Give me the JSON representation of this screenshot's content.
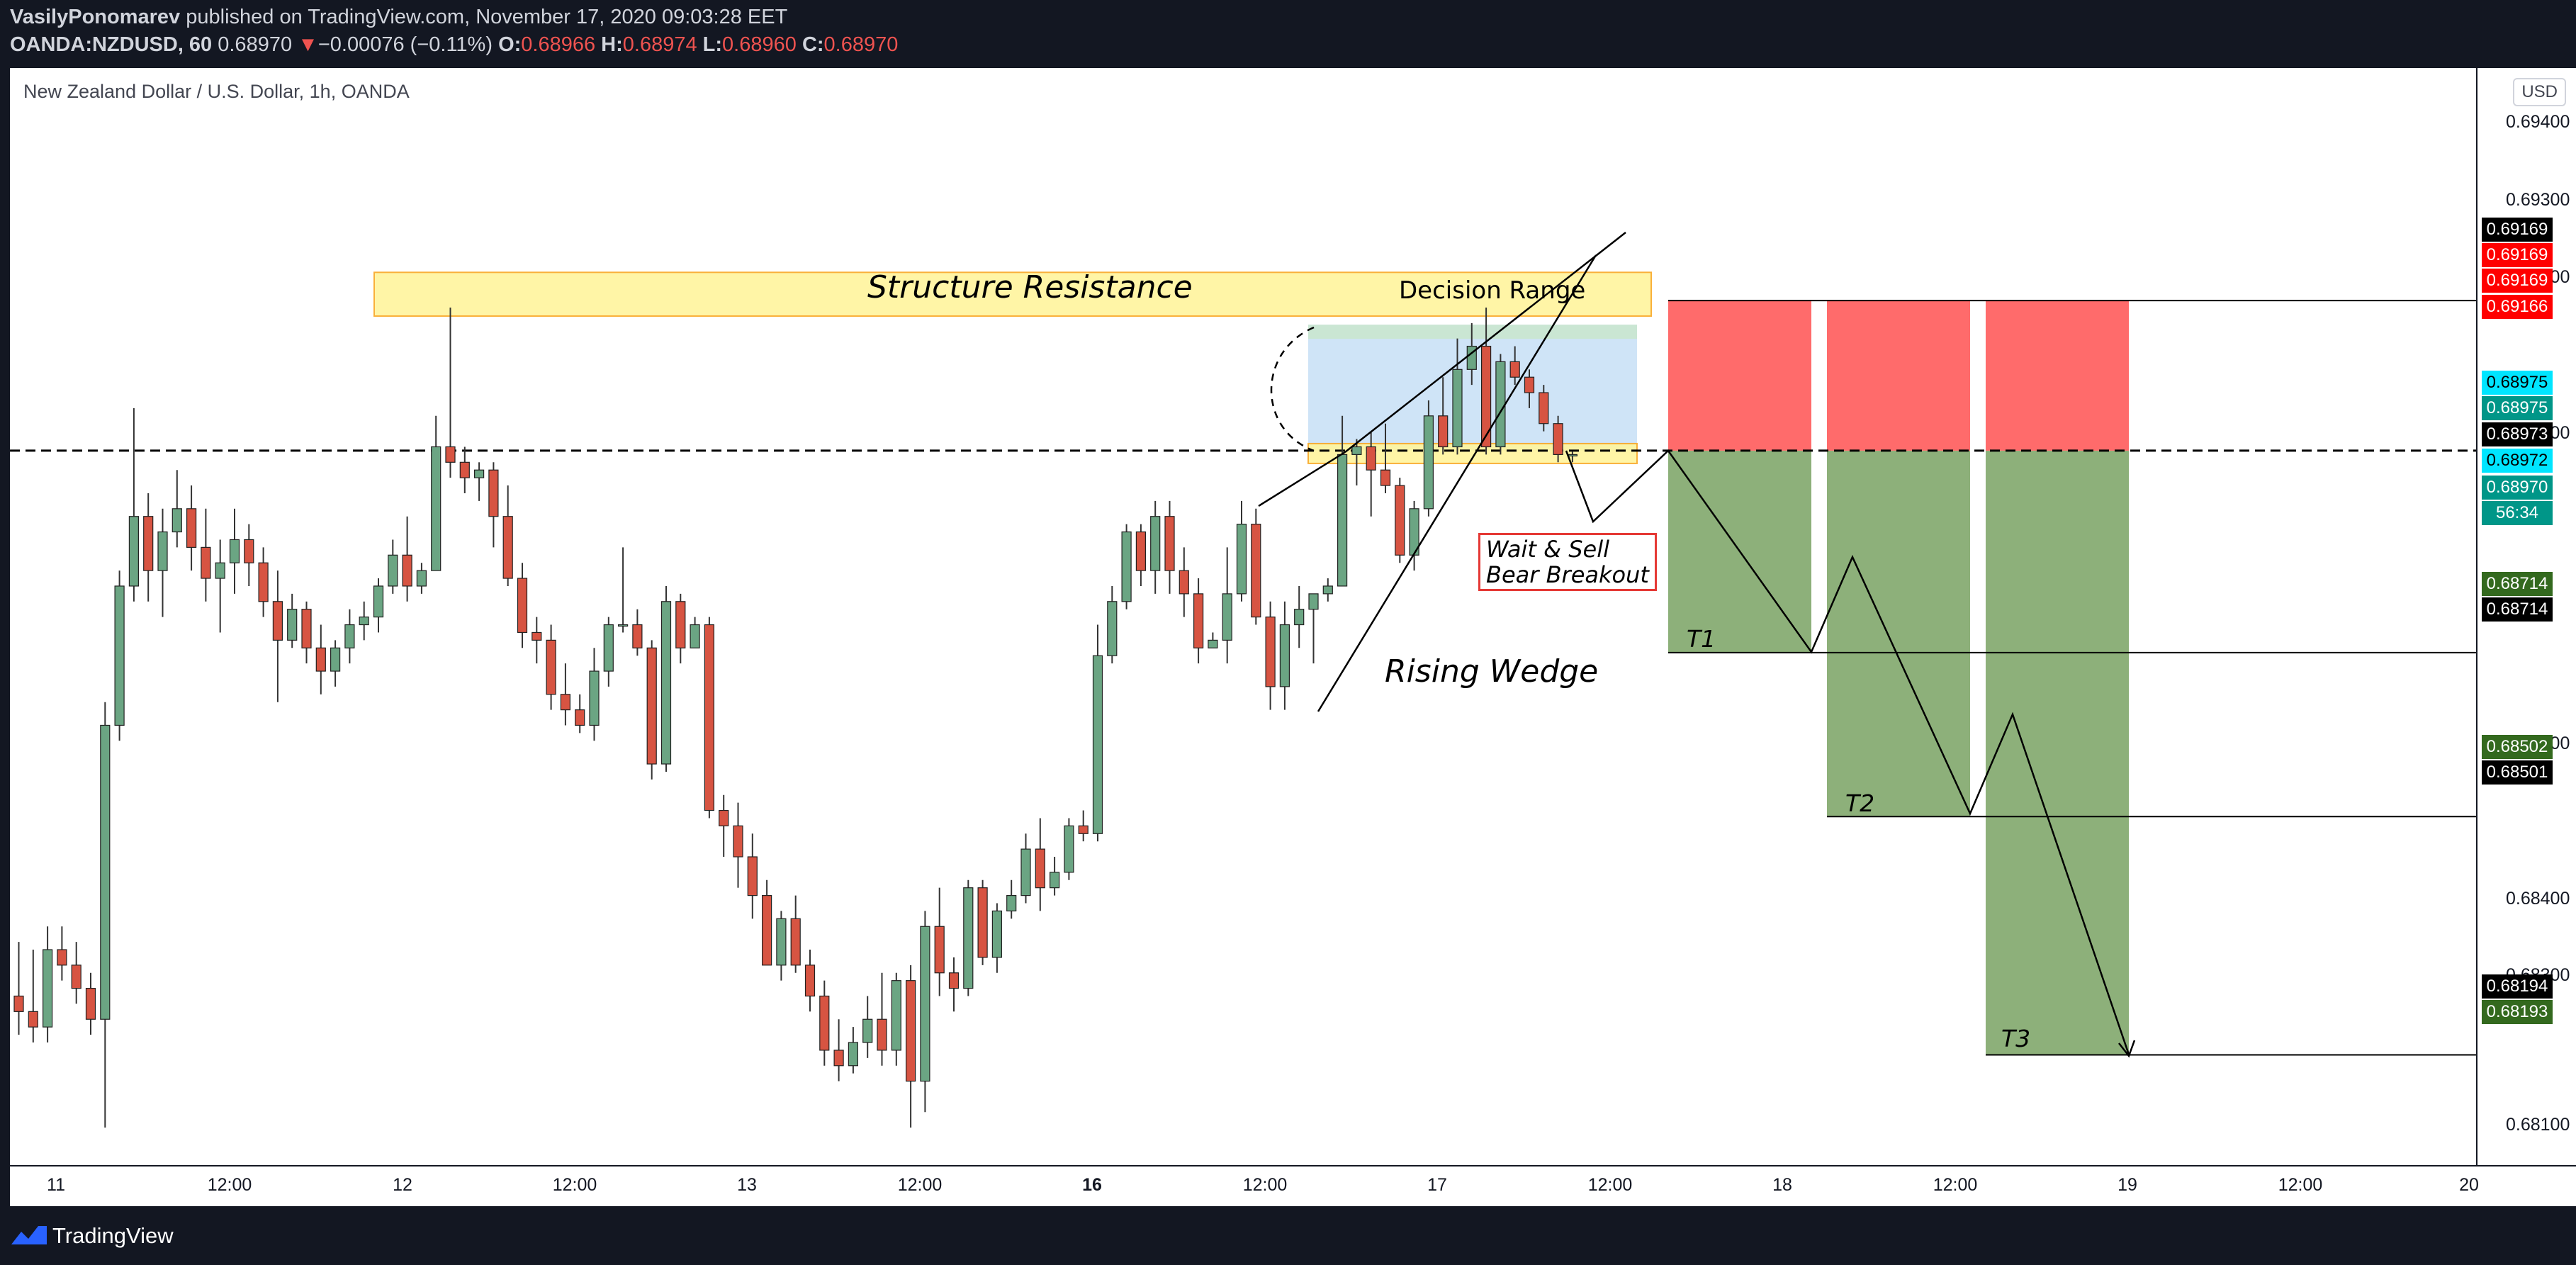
{
  "header": {
    "author": "VasilyPonomarev",
    "published_text": "published on TradingView.com, November 17, 2020 09:03:28 EET",
    "symbol": "OANDA:NZDUSD, 60",
    "last": "0.68970",
    "arrow": "▼",
    "change": "−0.00076 (−0.11%)",
    "o_label": "O:",
    "o_value": "0.68966",
    "h_label": "H:",
    "h_value": "0.68974",
    "l_label": "L:",
    "l_value": "0.68960",
    "c_label": "C:",
    "c_value": "0.68970"
  },
  "chart": {
    "title": "New Zealand Dollar / U.S. Dollar, 1h, OANDA",
    "currency_button": "USD",
    "annotations": {
      "structure_resistance": "Structure Resistance",
      "decision_range": "Decision Range",
      "wait_sell_line1": "Wait & Sell",
      "wait_sell_line2": "Bear Breakout",
      "rising_wedge": "Rising Wedge",
      "t1": "T1",
      "t2": "T2",
      "t3": "T3"
    },
    "price_axis_ticks": [
      "0.69400",
      "0.69300",
      "0.69200",
      "0.69000",
      "0.68600",
      "0.68400",
      "0.68300",
      "0.68100"
    ],
    "price_labels": [
      {
        "text": "0.69169",
        "bg": "#000000",
        "fg": "#ffffff"
      },
      {
        "text": "0.69169",
        "bg": "#ff0000",
        "fg": "#ffffff"
      },
      {
        "text": "0.69169",
        "bg": "#ff0000",
        "fg": "#ffffff"
      },
      {
        "text": "0.69166",
        "bg": "#ff0000",
        "fg": "#ffffff"
      },
      {
        "text": "0.68975",
        "bg": "#00e5ff",
        "fg": "#000000"
      },
      {
        "text": "0.68975",
        "bg": "#009688",
        "fg": "#ffffff"
      },
      {
        "text": "0.68973",
        "bg": "#000000",
        "fg": "#ffffff"
      },
      {
        "text": "0.68972",
        "bg": "#00e5ff",
        "fg": "#000000"
      },
      {
        "text": "0.68970",
        "bg": "#009688",
        "fg": "#ffffff"
      },
      {
        "text": "56:34",
        "bg": "#009688",
        "fg": "#ffffff"
      },
      {
        "text": "0.68714",
        "bg": "#33691e",
        "fg": "#ffffff"
      },
      {
        "text": "0.68714",
        "bg": "#000000",
        "fg": "#ffffff"
      },
      {
        "text": "0.68502",
        "bg": "#33691e",
        "fg": "#ffffff"
      },
      {
        "text": "0.68501",
        "bg": "#000000",
        "fg": "#ffffff"
      },
      {
        "text": "0.68194",
        "bg": "#000000",
        "fg": "#ffffff"
      },
      {
        "text": "0.68193",
        "bg": "#33691e",
        "fg": "#ffffff"
      }
    ],
    "time_axis_ticks": [
      {
        "label": "11",
        "bold": false
      },
      {
        "label": "12:00",
        "bold": false
      },
      {
        "label": "12",
        "bold": false
      },
      {
        "label": "12:00",
        "bold": false
      },
      {
        "label": "13",
        "bold": false
      },
      {
        "label": "12:00",
        "bold": false
      },
      {
        "label": "16",
        "bold": true
      },
      {
        "label": "12:00",
        "bold": false
      },
      {
        "label": "17",
        "bold": false
      },
      {
        "label": "12:00",
        "bold": false
      },
      {
        "label": "18",
        "bold": false
      },
      {
        "label": "12:00",
        "bold": false
      },
      {
        "label": "19",
        "bold": false
      },
      {
        "label": "12:00",
        "bold": false
      },
      {
        "label": "20",
        "bold": false
      }
    ],
    "colors": {
      "up": "#6ba583",
      "down": "#d75442",
      "stop_zone": "#ff6b6b",
      "target_zone": "#8db07a",
      "resistance_zone": "#fff59d",
      "decision_zone": "#cfe4f7"
    }
  },
  "chart_data": {
    "type": "candlestick",
    "title": "New Zealand Dollar / U.S. Dollar, 1h, OANDA",
    "y_unit": "USD",
    "ylim": [
      0.6805,
      0.6945
    ],
    "candles": [
      [
        0.6827,
        0.6834,
        0.6822,
        0.6825
      ],
      [
        0.6825,
        0.6833,
        0.6821,
        0.6823
      ],
      [
        0.6823,
        0.6836,
        0.6821,
        0.6833
      ],
      [
        0.6833,
        0.6836,
        0.6829,
        0.6831
      ],
      [
        0.6831,
        0.6834,
        0.6826,
        0.6828
      ],
      [
        0.6828,
        0.683,
        0.6822,
        0.6824
      ],
      [
        0.6824,
        0.6865,
        0.681,
        0.6862
      ],
      [
        0.6862,
        0.6882,
        0.686,
        0.688
      ],
      [
        0.688,
        0.6903,
        0.6878,
        0.6889
      ],
      [
        0.6889,
        0.6892,
        0.6878,
        0.6882
      ],
      [
        0.6882,
        0.689,
        0.6876,
        0.6887
      ],
      [
        0.6887,
        0.6895,
        0.6885,
        0.689
      ],
      [
        0.689,
        0.6893,
        0.6882,
        0.6885
      ],
      [
        0.6885,
        0.689,
        0.6878,
        0.6881
      ],
      [
        0.6881,
        0.6886,
        0.6874,
        0.6883
      ],
      [
        0.6883,
        0.689,
        0.6879,
        0.6886
      ],
      [
        0.6886,
        0.6888,
        0.688,
        0.6883
      ],
      [
        0.6883,
        0.6885,
        0.6876,
        0.6878
      ],
      [
        0.6878,
        0.6882,
        0.6865,
        0.6873
      ],
      [
        0.6873,
        0.6879,
        0.6872,
        0.6877
      ],
      [
        0.6877,
        0.6878,
        0.687,
        0.6872
      ],
      [
        0.6872,
        0.6875,
        0.6866,
        0.6869
      ],
      [
        0.6869,
        0.6873,
        0.6867,
        0.6872
      ],
      [
        0.6872,
        0.6877,
        0.687,
        0.6875
      ],
      [
        0.6875,
        0.6878,
        0.6873,
        0.6876
      ],
      [
        0.6876,
        0.6881,
        0.6874,
        0.688
      ],
      [
        0.688,
        0.6886,
        0.6879,
        0.6884
      ],
      [
        0.6884,
        0.6889,
        0.6878,
        0.688
      ],
      [
        0.688,
        0.6883,
        0.6879,
        0.6882
      ],
      [
        0.6882,
        0.6902,
        0.6882,
        0.6898
      ],
      [
        0.6898,
        0.6916,
        0.6894,
        0.6896
      ],
      [
        0.6896,
        0.6898,
        0.6892,
        0.6894
      ],
      [
        0.6894,
        0.6896,
        0.6891,
        0.6895
      ],
      [
        0.6895,
        0.6896,
        0.6885,
        0.6889
      ],
      [
        0.6889,
        0.6893,
        0.688,
        0.6881
      ],
      [
        0.6881,
        0.6883,
        0.6872,
        0.6874
      ],
      [
        0.6874,
        0.6876,
        0.687,
        0.6873
      ],
      [
        0.6873,
        0.6875,
        0.6864,
        0.6866
      ],
      [
        0.6866,
        0.687,
        0.6862,
        0.6864
      ],
      [
        0.6864,
        0.6866,
        0.6861,
        0.6862
      ],
      [
        0.6862,
        0.6872,
        0.686,
        0.6869
      ],
      [
        0.6869,
        0.6876,
        0.6867,
        0.6875
      ],
      [
        0.6875,
        0.6885,
        0.6874,
        0.6875
      ],
      [
        0.6875,
        0.6877,
        0.6871,
        0.6872
      ],
      [
        0.6872,
        0.6873,
        0.6855,
        0.6857
      ],
      [
        0.6857,
        0.688,
        0.6856,
        0.6878
      ],
      [
        0.6878,
        0.6879,
        0.687,
        0.6872
      ],
      [
        0.6872,
        0.6876,
        0.6872,
        0.6875
      ],
      [
        0.6875,
        0.6876,
        0.685,
        0.6851
      ],
      [
        0.6851,
        0.6853,
        0.6845,
        0.6849
      ],
      [
        0.6849,
        0.6852,
        0.6841,
        0.6845
      ],
      [
        0.6845,
        0.6848,
        0.6837,
        0.684
      ],
      [
        0.684,
        0.6842,
        0.6832,
        0.6831
      ],
      [
        0.6831,
        0.6838,
        0.6829,
        0.6837
      ],
      [
        0.6837,
        0.684,
        0.683,
        0.6831
      ],
      [
        0.6831,
        0.6833,
        0.6825,
        0.6827
      ],
      [
        0.6827,
        0.6829,
        0.6818,
        0.682
      ],
      [
        0.682,
        0.6824,
        0.6816,
        0.6818
      ],
      [
        0.6818,
        0.6823,
        0.6817,
        0.6821
      ],
      [
        0.6821,
        0.6827,
        0.6819,
        0.6824
      ],
      [
        0.6824,
        0.683,
        0.6818,
        0.682
      ],
      [
        0.682,
        0.683,
        0.6818,
        0.6829
      ],
      [
        0.6829,
        0.6831,
        0.681,
        0.6816
      ],
      [
        0.6816,
        0.6838,
        0.6812,
        0.6836
      ],
      [
        0.6836,
        0.6841,
        0.6827,
        0.683
      ],
      [
        0.683,
        0.6832,
        0.6825,
        0.6828
      ],
      [
        0.6828,
        0.6842,
        0.6827,
        0.6841
      ],
      [
        0.6841,
        0.6842,
        0.6831,
        0.6832
      ],
      [
        0.6832,
        0.6839,
        0.683,
        0.6838
      ],
      [
        0.6838,
        0.6842,
        0.6837,
        0.684
      ],
      [
        0.684,
        0.6848,
        0.6839,
        0.6846
      ],
      [
        0.6846,
        0.685,
        0.6838,
        0.6841
      ],
      [
        0.6841,
        0.6845,
        0.684,
        0.6843
      ],
      [
        0.6843,
        0.685,
        0.6842,
        0.6849
      ],
      [
        0.6849,
        0.6851,
        0.6847,
        0.6848
      ],
      [
        0.6848,
        0.6875,
        0.6847,
        0.6871
      ],
      [
        0.6871,
        0.688,
        0.687,
        0.6878
      ],
      [
        0.6878,
        0.6888,
        0.6877,
        0.6887
      ],
      [
        0.6887,
        0.6888,
        0.688,
        0.6882
      ],
      [
        0.6882,
        0.6891,
        0.6879,
        0.6889
      ],
      [
        0.6889,
        0.6891,
        0.6879,
        0.6882
      ],
      [
        0.6882,
        0.6885,
        0.6876,
        0.6879
      ],
      [
        0.6879,
        0.6881,
        0.687,
        0.6872
      ],
      [
        0.6872,
        0.6874,
        0.6872,
        0.6873
      ],
      [
        0.6873,
        0.6885,
        0.687,
        0.6879
      ],
      [
        0.6879,
        0.6891,
        0.6878,
        0.6888
      ],
      [
        0.6888,
        0.689,
        0.6875,
        0.6876
      ],
      [
        0.6876,
        0.6878,
        0.6864,
        0.6867
      ],
      [
        0.6867,
        0.6878,
        0.6864,
        0.6875
      ],
      [
        0.6875,
        0.688,
        0.6872,
        0.6877
      ],
      [
        0.6877,
        0.6879,
        0.687,
        0.6879
      ],
      [
        0.6879,
        0.6881,
        0.6878,
        0.688
      ],
      [
        0.688,
        0.6902,
        0.688,
        0.6897
      ],
      [
        0.6897,
        0.6899,
        0.6893,
        0.6898
      ],
      [
        0.6898,
        0.69,
        0.6889,
        0.6895
      ],
      [
        0.6895,
        0.6901,
        0.6892,
        0.6893
      ],
      [
        0.6893,
        0.6894,
        0.6883,
        0.6884
      ],
      [
        0.6884,
        0.6891,
        0.6882,
        0.689
      ],
      [
        0.689,
        0.6904,
        0.6889,
        0.6902
      ],
      [
        0.6902,
        0.6907,
        0.6897,
        0.6898
      ],
      [
        0.6898,
        0.6912,
        0.6897,
        0.6908
      ],
      [
        0.6908,
        0.6914,
        0.6906,
        0.6911
      ],
      [
        0.6911,
        0.6916,
        0.6897,
        0.6898
      ],
      [
        0.6898,
        0.691,
        0.6897,
        0.6909
      ],
      [
        0.6909,
        0.6911,
        0.6906,
        0.6907
      ],
      [
        0.6907,
        0.6908,
        0.6903,
        0.6905
      ],
      [
        0.6905,
        0.6906,
        0.69,
        0.6901
      ],
      [
        0.6901,
        0.6902,
        0.6896,
        0.6897
      ],
      [
        0.6897,
        0.68974,
        0.6896,
        0.6897
      ]
    ],
    "levels": {
      "structure_resistance": [
        0.6916,
        0.692
      ],
      "decision_range": [
        0.68975,
        0.69169
      ],
      "entry": 0.68975,
      "stop": 0.69169,
      "T1": 0.68714,
      "T2": 0.68502,
      "T3": 0.68194
    },
    "x_ticks": [
      "11",
      "12:00",
      "12",
      "12:00",
      "13",
      "12:00",
      "16",
      "12:00",
      "17",
      "12:00",
      "18",
      "12:00",
      "19",
      "12:00",
      "20"
    ]
  }
}
